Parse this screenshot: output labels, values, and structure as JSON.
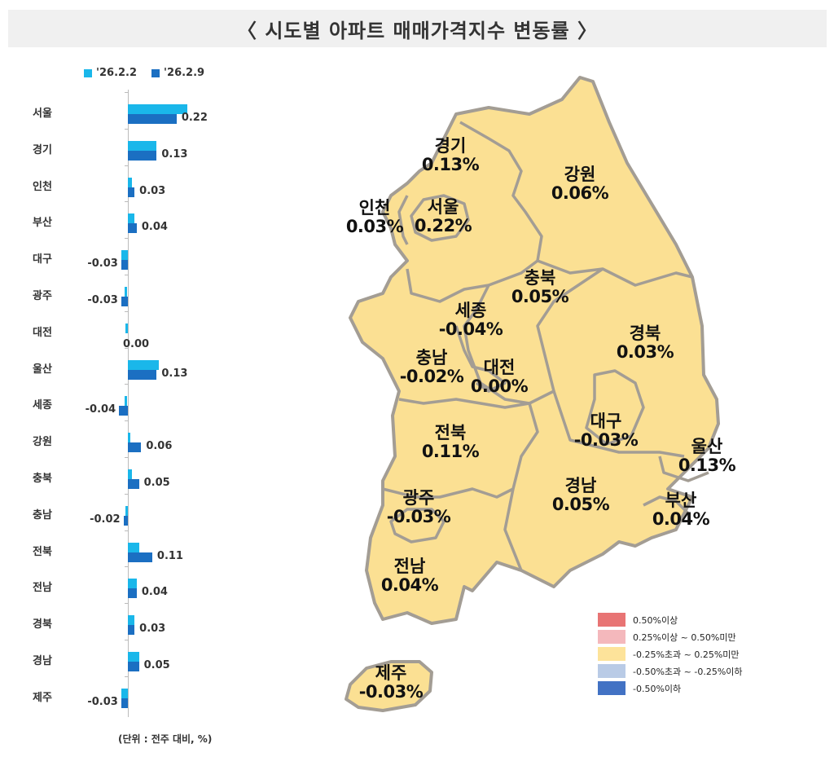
{
  "title": "〈 시도별 아파트 매매가격지수 변동률 〉",
  "bar_legend": [
    {
      "label": "'26.2.2",
      "color": "#1ab7ea"
    },
    {
      "label": "'26.2.9",
      "color": "#1b6fc2"
    }
  ],
  "unit_note": "(단위 : 전주 대비, %)",
  "chart_data": {
    "type": "bar",
    "orientation": "horizontal",
    "title": "시도별 아파트 매매가격지수 변동률",
    "xlabel": "",
    "ylabel": "",
    "unit": "전주 대비, %",
    "categories": [
      "서울",
      "경기",
      "인천",
      "부산",
      "대구",
      "광주",
      "대전",
      "울산",
      "세종",
      "강원",
      "충북",
      "충남",
      "전북",
      "전남",
      "경북",
      "경남",
      "제주"
    ],
    "series": [
      {
        "name": "'26.2.2",
        "color": "#1ab7ea",
        "values": [
          0.27,
          0.13,
          0.02,
          0.03,
          -0.03,
          0.0,
          -0.01,
          0.14,
          0.0,
          0.01,
          0.02,
          -0.01,
          0.05,
          0.04,
          0.03,
          0.05,
          -0.03
        ]
      },
      {
        "name": "'26.2.9",
        "color": "#1b6fc2",
        "values": [
          0.22,
          0.13,
          0.03,
          0.04,
          -0.03,
          -0.03,
          0.0,
          0.13,
          -0.04,
          0.06,
          0.05,
          -0.02,
          0.11,
          0.04,
          0.03,
          0.05,
          -0.03
        ]
      }
    ],
    "data_labels": [
      "0.22",
      "0.13",
      "0.03",
      "0.04",
      "-0.03",
      "-0.03",
      "0.00",
      "0.13",
      "-0.04",
      "0.06",
      "0.05",
      "-0.02",
      "0.11",
      "0.04",
      "0.03",
      "0.05",
      "-0.03"
    ],
    "grid": false,
    "legend_position": "top"
  },
  "map": {
    "fill": "#fbe093",
    "border": "#a39d94",
    "regions": [
      {
        "name": "경기",
        "value": "0.13%"
      },
      {
        "name": "강원",
        "value": "0.06%"
      },
      {
        "name": "인천",
        "value": "0.03%"
      },
      {
        "name": "서울",
        "value": "0.22%"
      },
      {
        "name": "충북",
        "value": "0.05%"
      },
      {
        "name": "세종",
        "value": "-0.04%"
      },
      {
        "name": "경북",
        "value": "0.03%"
      },
      {
        "name": "충남",
        "value": "-0.02%"
      },
      {
        "name": "대전",
        "value": "0.00%"
      },
      {
        "name": "대구",
        "value": "-0.03%"
      },
      {
        "name": "전북",
        "value": "0.11%"
      },
      {
        "name": "울산",
        "value": "0.13%"
      },
      {
        "name": "경남",
        "value": "0.05%"
      },
      {
        "name": "부산",
        "value": "0.04%"
      },
      {
        "name": "광주",
        "value": "-0.03%"
      },
      {
        "name": "전남",
        "value": "0.04%"
      },
      {
        "name": "제주",
        "value": "-0.03%"
      }
    ]
  },
  "map_legend": [
    {
      "label": "0.50%이상",
      "color": "#e87474"
    },
    {
      "label": "0.25%이상 ~ 0.50%미만",
      "color": "#f4b8bc"
    },
    {
      "label": "-0.25%초과 ~ 0.25%미만",
      "color": "#fde39a"
    },
    {
      "label": "-0.50%초과 ~ -0.25%이하",
      "color": "#b9cbe6"
    },
    {
      "label": "-0.50%이하",
      "color": "#4272c4"
    }
  ]
}
